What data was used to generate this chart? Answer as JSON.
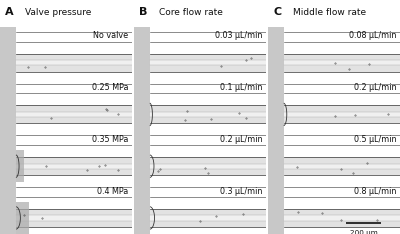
{
  "figure_width": 4.0,
  "figure_height": 2.34,
  "dpi": 100,
  "bg_white": "#ffffff",
  "bg_very_light": "#f0f0f0",
  "bg_light": "#e2e2e2",
  "bg_mid": "#c8c8c8",
  "bg_dark": "#a0a0a0",
  "bg_darker": "#888888",
  "line_dark": "#333333",
  "line_mid": "#666666",
  "columns": [
    {
      "label": "A",
      "title": "Valve pressure",
      "rows": [
        "No valve",
        "0.25 MPa",
        "0.35 MPa",
        "0.4 MPa"
      ],
      "has_valve_left": [
        false,
        false,
        true,
        true
      ],
      "valve_darkness": [
        0,
        0,
        0.6,
        0.85
      ]
    },
    {
      "label": "B",
      "title": "Core flow rate",
      "rows": [
        "0.03 μL/min",
        "0.1 μL/min",
        "0.2 μL/min",
        "0.3 μL/min"
      ],
      "has_valve_left": [
        false,
        true,
        true,
        true
      ],
      "valve_darkness": [
        0,
        0.5,
        0.8,
        0.9
      ]
    },
    {
      "label": "C",
      "title": "Middle flow rate",
      "rows": [
        "0.08 μL/min",
        "0.2 μL/min",
        "0.5 μL/min",
        "0.8 μL/min"
      ],
      "has_valve_left": [
        false,
        true,
        false,
        false
      ],
      "valve_darkness": [
        0,
        0.6,
        0,
        0
      ]
    }
  ],
  "n_rows": 4,
  "n_cols": 3,
  "scalebar_text": "200 μm",
  "header_fontsize": 6.5,
  "label_fontsize": 8,
  "row_label_fontsize": 5.8,
  "scalebar_fontsize": 5.2,
  "dot_seed": 123
}
